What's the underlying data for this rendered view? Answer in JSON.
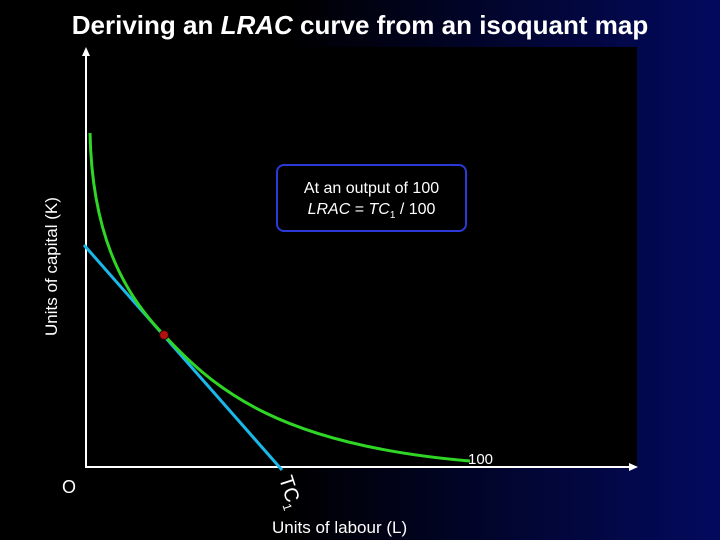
{
  "title": {
    "prefix": "Deriving an ",
    "italic": "LRAC",
    "suffix": " curve from an isoquant map"
  },
  "axes": {
    "y_label": "Units of capital (K)",
    "x_label": "Units of labour (L)",
    "origin_label": "O"
  },
  "isoquant": {
    "output_label": "100",
    "color": "#2fd626"
  },
  "isocost": {
    "label_main": "TC",
    "label_sub": "1",
    "color": "#19b8e8"
  },
  "callout": {
    "line1": "At an output of 100",
    "line2_lrac": "LRAC",
    "line2_eq": " = ",
    "line2_tc": "TC",
    "line2_sub": "1",
    "line2_rest": " / 100",
    "border_color": "#2b3ad6"
  },
  "tangency_point": {
    "color": "#b01010"
  },
  "colors": {
    "background": "#000000",
    "gradient_right": "#030a5e",
    "axis": "#ffffff",
    "text": "#ffffff"
  }
}
